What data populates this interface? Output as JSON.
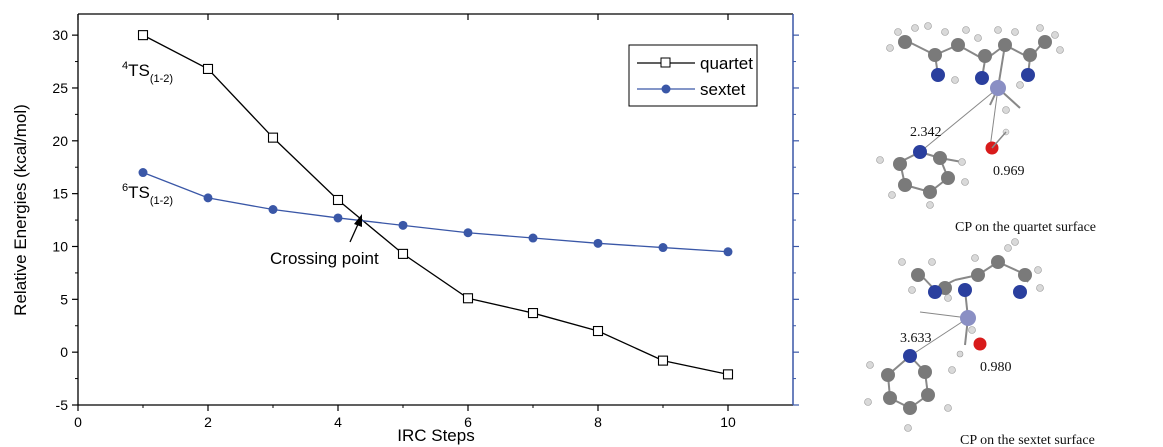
{
  "chart_data": {
    "type": "line",
    "xlabel": "IRC Steps",
    "ylabel": "Relative Energies (kcal/mol)",
    "xlim": [
      0,
      11
    ],
    "ylim": [
      -5,
      32
    ],
    "xticks": [
      0,
      2,
      4,
      6,
      8,
      10
    ],
    "yticks": [
      -5,
      0,
      5,
      10,
      15,
      20,
      25,
      30
    ],
    "grid": false,
    "legend_position": "top-right",
    "x": [
      1,
      2,
      3,
      4,
      5,
      6,
      7,
      8,
      9,
      10
    ],
    "series": [
      {
        "name": "quartet",
        "marker": "open-square",
        "color": "#000000",
        "values": [
          30.0,
          26.8,
          20.3,
          14.4,
          9.3,
          5.1,
          3.7,
          2.0,
          -0.8,
          -2.1
        ]
      },
      {
        "name": "sextet",
        "marker": "filled-circle",
        "color": "#3a57a7",
        "values": [
          17.0,
          14.6,
          13.5,
          12.7,
          12.0,
          11.3,
          10.8,
          10.3,
          9.9,
          9.5
        ]
      }
    ],
    "annotations": {
      "ts_quartet": {
        "sup": "4",
        "main": "TS",
        "sub": "(1-2)"
      },
      "ts_sextet": {
        "sup": "6",
        "main": "TS",
        "sub": "(1-2)"
      },
      "crossing_point": "Crossing point",
      "crossing_x": 4.4,
      "crossing_y": 12.5
    }
  },
  "molecules": {
    "quartet": {
      "distance": "2.342",
      "oh_distance": "0.969",
      "caption": "CP on the quartet surface"
    },
    "sextet": {
      "distance": "3.633",
      "oh_distance": "0.980",
      "caption": "CP on the sextet surface"
    }
  },
  "colors": {
    "right_axis": "#3a57a7",
    "nitrogen": "#2a3f9e",
    "oxygen": "#d81b1b",
    "metal": "#8a8fc4",
    "carbon": "#7a7a7a",
    "hydrogen": "#e6e6e6"
  }
}
